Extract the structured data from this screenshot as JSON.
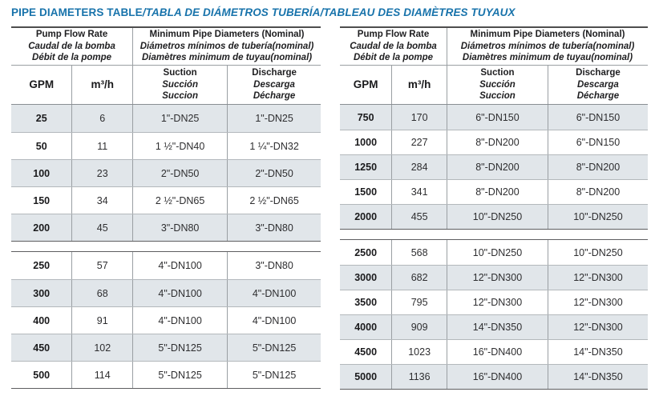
{
  "title": {
    "main": "PIPE DIAMETERS TABLE",
    "translations": "/TABLA DE DIÁMETROS TUBERÍA/TABLEAU DES DIAMÈTRES TUYAUX"
  },
  "colors": {
    "title_blue": "#1873ab",
    "shaded_row": "#e1e6ea",
    "border_dark": "#4e4e4e",
    "border_light": "#b3b8bc"
  },
  "column_headers": {
    "flow": {
      "en": "Pump Flow Rate",
      "es": "Caudal de la bomba",
      "fr": "Débit de la pompe"
    },
    "diameters": {
      "en": "Minimum Pipe Diameters (Nominal)",
      "es": "Diámetros mínimos de tubería(nominal)",
      "fr": "Diamètres minimum de tuyau(nominal)"
    },
    "gpm": "GPM",
    "m3h": "m³/h",
    "suction": {
      "en": "Suction",
      "es": "Succión",
      "fr": "Succion"
    },
    "discharge": {
      "en": "Discharge",
      "es": "Descarga",
      "fr": "Décharge"
    }
  },
  "tables": [
    {
      "name": "low-flow",
      "groups": [
        [
          {
            "gpm": "25",
            "m3h": "6",
            "suction": "1\"-DN25",
            "discharge": "1\"-DN25"
          },
          {
            "gpm": "50",
            "m3h": "11",
            "suction": "1 ½\"-DN40",
            "discharge": "1 ¼\"-DN32"
          },
          {
            "gpm": "100",
            "m3h": "23",
            "suction": "2\"-DN50",
            "discharge": "2\"-DN50"
          },
          {
            "gpm": "150",
            "m3h": "34",
            "suction": "2 ½\"-DN65",
            "discharge": "2 ½\"-DN65"
          },
          {
            "gpm": "200",
            "m3h": "45",
            "suction": "3\"-DN80",
            "discharge": "3\"-DN80"
          }
        ],
        [
          {
            "gpm": "250",
            "m3h": "57",
            "suction": "4\"-DN100",
            "discharge": "3\"-DN80"
          },
          {
            "gpm": "300",
            "m3h": "68",
            "suction": "4\"-DN100",
            "discharge": "4\"-DN100"
          },
          {
            "gpm": "400",
            "m3h": "91",
            "suction": "4\"-DN100",
            "discharge": "4\"-DN100"
          },
          {
            "gpm": "450",
            "m3h": "102",
            "suction": "5\"-DN125",
            "discharge": "5\"-DN125"
          },
          {
            "gpm": "500",
            "m3h": "114",
            "suction": "5\"-DN125",
            "discharge": "5\"-DN125"
          }
        ]
      ]
    },
    {
      "name": "high-flow",
      "groups": [
        [
          {
            "gpm": "750",
            "m3h": "170",
            "suction": "6\"-DN150",
            "discharge": "6\"-DN150"
          },
          {
            "gpm": "1000",
            "m3h": "227",
            "suction": "8\"-DN200",
            "discharge": "6\"-DN150"
          },
          {
            "gpm": "1250",
            "m3h": "284",
            "suction": "8\"-DN200",
            "discharge": "8\"-DN200"
          },
          {
            "gpm": "1500",
            "m3h": "341",
            "suction": "8\"-DN200",
            "discharge": "8\"-DN200"
          },
          {
            "gpm": "2000",
            "m3h": "455",
            "suction": "10\"-DN250",
            "discharge": "10\"-DN250"
          }
        ],
        [
          {
            "gpm": "2500",
            "m3h": "568",
            "suction": "10\"-DN250",
            "discharge": "10\"-DN250"
          },
          {
            "gpm": "3000",
            "m3h": "682",
            "suction": "12\"-DN300",
            "discharge": "12\"-DN300"
          },
          {
            "gpm": "3500",
            "m3h": "795",
            "suction": "12\"-DN300",
            "discharge": "12\"-DN300"
          },
          {
            "gpm": "4000",
            "m3h": "909",
            "suction": "14\"-DN350",
            "discharge": "12\"-DN300"
          },
          {
            "gpm": "4500",
            "m3h": "1023",
            "suction": "16\"-DN400",
            "discharge": "14\"-DN350"
          },
          {
            "gpm": "5000",
            "m3h": "1136",
            "suction": "16\"-DN400",
            "discharge": "14\"-DN350"
          }
        ]
      ]
    }
  ]
}
